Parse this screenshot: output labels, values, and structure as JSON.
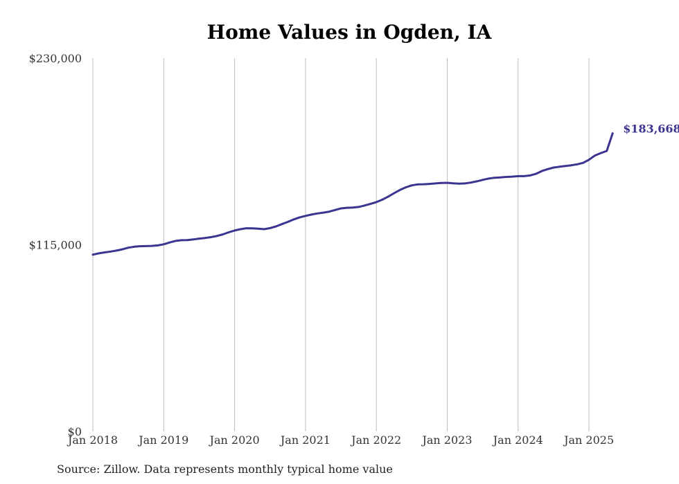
{
  "chart_data": {
    "type": "line",
    "title": "Home Values in Ogden, IA",
    "source": "Source: Zillow. Data represents monthly typical home value",
    "ylim": [
      0,
      230000
    ],
    "y_ticks": [
      {
        "value": 0,
        "label": "$0"
      },
      {
        "value": 115000,
        "label": "$115,000"
      },
      {
        "value": 230000,
        "label": "$230,000"
      }
    ],
    "x_ticks": [
      "Jan 2018",
      "Jan 2019",
      "Jan 2020",
      "Jan 2021",
      "Jan 2022",
      "Jan 2023",
      "Jan 2024",
      "Jan 2025"
    ],
    "x_start": "2018-01",
    "x_end": "2025-03",
    "grid": "vertical",
    "line_color": "#3b3491",
    "end_label": "$183,668",
    "series": [
      {
        "values": [
          108900,
          109700,
          110300,
          110800,
          111400,
          112200,
          113200,
          113800,
          114100,
          114200,
          114300,
          114600,
          115300,
          116400,
          117400,
          117800,
          117900,
          118300,
          118800,
          119200,
          119700,
          120400,
          121400,
          122700,
          123800,
          124600,
          125200,
          125100,
          124900,
          124600,
          125300,
          126300,
          127700,
          129100,
          130600,
          131900,
          132800,
          133600,
          134300,
          134800,
          135400,
          136400,
          137400,
          137800,
          137900,
          138300,
          139200,
          140200,
          141300,
          142800,
          144700,
          146800,
          148800,
          150400,
          151600,
          152200,
          152300,
          152500,
          152800,
          153100,
          153200,
          152900,
          152700,
          152800,
          153300,
          154100,
          155000,
          155800,
          156300,
          156500,
          156800,
          157000,
          157300,
          157300,
          157700,
          158700,
          160400,
          161600,
          162600,
          163100,
          163500,
          164000,
          164600,
          165500,
          167400,
          170000,
          171500,
          172800,
          183668
        ]
      }
    ]
  }
}
